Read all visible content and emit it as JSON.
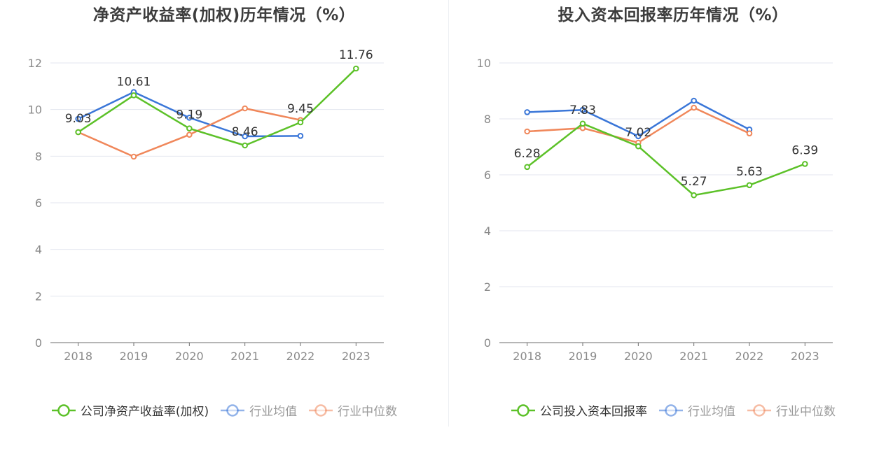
{
  "chart_data": [
    {
      "type": "line",
      "title": "净资产收益率(加权)历年情况（%）",
      "categories": [
        "2018",
        "2019",
        "2020",
        "2021",
        "2022",
        "2023"
      ],
      "ylim": [
        0,
        12
      ],
      "yticks": [
        0,
        2,
        4,
        6,
        8,
        10,
        12
      ],
      "grid": true,
      "legend_position": "bottom",
      "series": [
        {
          "name": "公司净资产收益率(加权)",
          "color": "#5cc128",
          "values": [
            9.03,
            10.61,
            9.19,
            8.46,
            9.45,
            11.76
          ],
          "labels": [
            "9.03",
            "10.61",
            "9.19",
            "8.46",
            "9.45",
            "11.76"
          ],
          "primary": true
        },
        {
          "name": "行业均值",
          "color": "#3a76d8",
          "values": [
            9.6,
            10.75,
            9.65,
            8.85,
            8.87,
            null
          ]
        },
        {
          "name": "行业中位数",
          "color": "#f0875a",
          "values": [
            9.03,
            7.98,
            8.92,
            10.05,
            9.55,
            null
          ]
        }
      ]
    },
    {
      "type": "line",
      "title": "投入资本回报率历年情况（%）",
      "categories": [
        "2018",
        "2019",
        "2020",
        "2021",
        "2022",
        "2023"
      ],
      "ylim": [
        0,
        10
      ],
      "yticks": [
        0,
        2,
        4,
        6,
        8,
        10
      ],
      "grid": true,
      "legend_position": "bottom",
      "series": [
        {
          "name": "公司投入资本回报率",
          "color": "#5cc128",
          "values": [
            6.28,
            7.83,
            7.02,
            5.27,
            5.63,
            6.39
          ],
          "labels": [
            "6.28",
            "7.83",
            "7.02",
            "5.27",
            "5.63",
            "6.39"
          ],
          "primary": true
        },
        {
          "name": "行业均值",
          "color": "#3a76d8",
          "values": [
            8.24,
            8.32,
            7.38,
            8.65,
            7.62,
            null
          ]
        },
        {
          "name": "行业中位数",
          "color": "#f0875a",
          "values": [
            7.55,
            7.67,
            7.15,
            8.4,
            7.48,
            null
          ]
        }
      ]
    }
  ]
}
